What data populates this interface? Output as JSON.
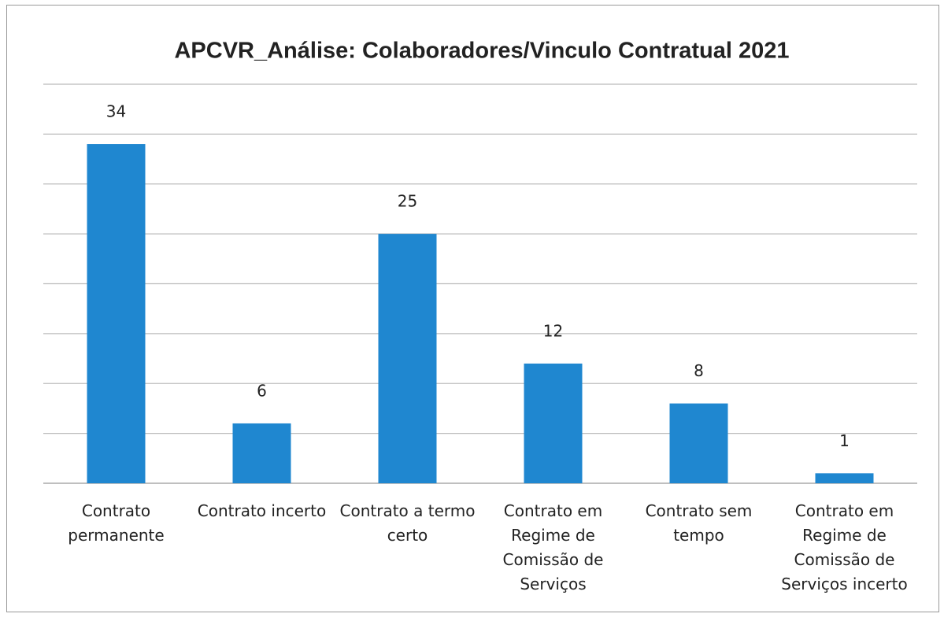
{
  "chart_data": {
    "type": "bar",
    "title": "APCVR_Análise: Colaboradores/Vinculo Contratual 2021",
    "categories": [
      "Contrato permanente",
      "Contrato incerto",
      "Contrato a termo certo",
      "Contrato em Regime de Comissão de Serviços",
      "Contrato sem tempo",
      "Contrato em Regime de Comissão de Serviços incerto"
    ],
    "values": [
      34,
      6,
      25,
      12,
      8,
      1
    ],
    "color": "#1f87d0",
    "ylim": [
      0,
      40
    ],
    "yticks": [
      0,
      5,
      10,
      15,
      20,
      25,
      30,
      35,
      40
    ],
    "grid": true
  }
}
